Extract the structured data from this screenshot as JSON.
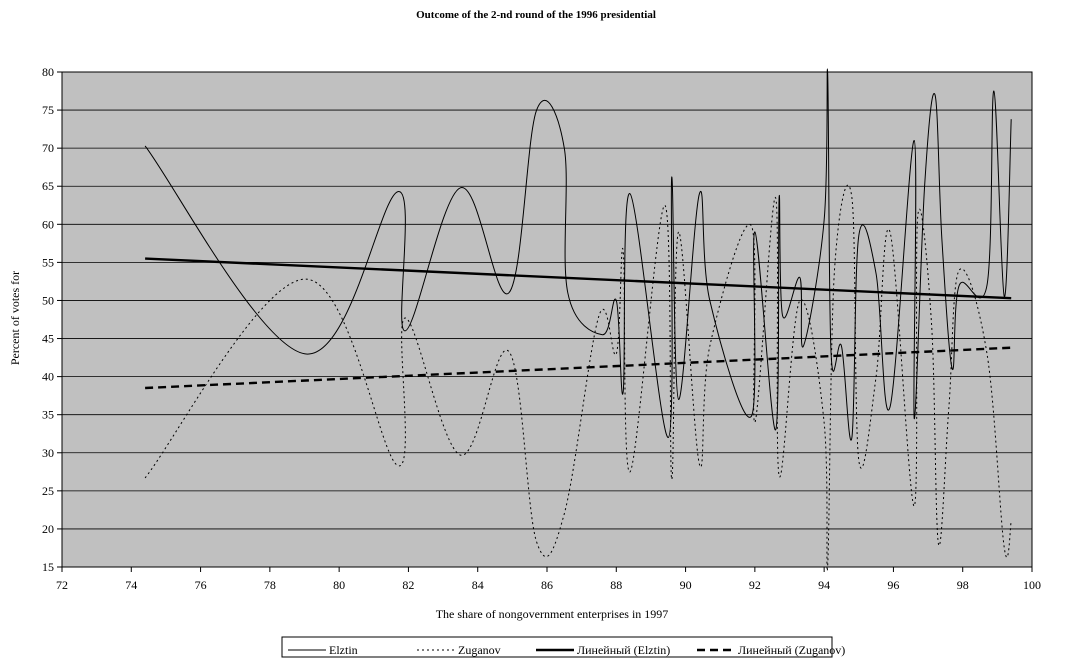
{
  "chart_data": {
    "type": "line",
    "title": "Outcome of the 2-nd round of the 1996 presidential",
    "xlabel": "The share of nongovernment enterprises in 1997",
    "ylabel": "Percent of votes for",
    "xlim": [
      72,
      100
    ],
    "ylim": [
      15,
      80
    ],
    "xticks": [
      72,
      74,
      76,
      78,
      80,
      82,
      84,
      86,
      88,
      90,
      92,
      94,
      96,
      98,
      100
    ],
    "yticks": [
      15,
      20,
      25,
      30,
      35,
      40,
      45,
      50,
      55,
      60,
      65,
      70,
      75,
      80
    ],
    "grid": "horizontal",
    "plot_background": "#c0c0c0",
    "legend_position": "bottom",
    "series": [
      {
        "name": "Elztin",
        "style": "solid",
        "stroke_width": 1,
        "color": "#000000",
        "smooth": true,
        "x": [
          74.4,
          79.0,
          81.7,
          81.9,
          83.5,
          84.9,
          85.7,
          86.5,
          86.6,
          87.6,
          88.0,
          88.2,
          88.4,
          89.5,
          89.6,
          89.8,
          90.4,
          90.7,
          91.9,
          92.0,
          92.6,
          92.7,
          92.8,
          93.3,
          93.4,
          94.0,
          94.1,
          94.2,
          94.5,
          94.8,
          95.0,
          95.5,
          95.9,
          96.6,
          96.6,
          96.9,
          97.2,
          97.4,
          97.7,
          97.9,
          98.7,
          98.9,
          99.2,
          99.4
        ],
        "y": [
          70.3,
          43.0,
          64.3,
          46.0,
          64.8,
          51.0,
          75.0,
          70.0,
          51.0,
          45.5,
          50.0,
          38.0,
          64.0,
          32.0,
          66.2,
          37.0,
          64.0,
          50.0,
          34.8,
          59.0,
          33.0,
          63.5,
          48.0,
          53.0,
          44.0,
          60.5,
          80.0,
          43.0,
          44.0,
          32.0,
          58.5,
          53.5,
          36.0,
          71.0,
          34.5,
          65.0,
          77.0,
          58.0,
          41.0,
          52.0,
          52.0,
          77.5,
          50.5,
          73.8
        ]
      },
      {
        "name": "Zuganov",
        "style": "dotted",
        "stroke_width": 1,
        "color": "#000000",
        "smooth": true,
        "x": [
          74.4,
          79.0,
          81.7,
          81.9,
          83.5,
          84.9,
          85.7,
          86.5,
          87.5,
          88.0,
          88.2,
          88.4,
          89.4,
          89.6,
          89.8,
          90.4,
          90.7,
          91.9,
          92.0,
          92.6,
          92.7,
          93.3,
          94.0,
          94.1,
          94.3,
          94.8,
          95.0,
          95.5,
          95.9,
          96.6,
          96.7,
          97.1,
          97.3,
          97.6,
          97.9,
          98.7,
          99.2,
          99.4
        ],
        "y": [
          26.7,
          52.8,
          28.3,
          47.7,
          29.7,
          43.3,
          18.3,
          22.0,
          48.0,
          43.0,
          56.5,
          27.5,
          62.5,
          26.5,
          59.0,
          28.5,
          44.0,
          59.8,
          34.0,
          63.5,
          27.0,
          50.0,
          34.0,
          15.0,
          54.0,
          63.5,
          29.0,
          40.0,
          59.0,
          23.0,
          61.0,
          47.0,
          18.0,
          36.0,
          54.0,
          43.0,
          17.5,
          21.0
        ]
      },
      {
        "name": "Линейный (Elztin)",
        "style": "solid",
        "stroke_width": 2.4,
        "color": "#000000",
        "smooth": false,
        "x": [
          74.4,
          99.4
        ],
        "y": [
          55.5,
          50.3
        ]
      },
      {
        "name": "Линейный (Zuganov)",
        "style": "dashed",
        "stroke_width": 2.4,
        "color": "#000000",
        "smooth": false,
        "x": [
          74.4,
          99.4
        ],
        "y": [
          38.5,
          43.8
        ]
      }
    ]
  }
}
